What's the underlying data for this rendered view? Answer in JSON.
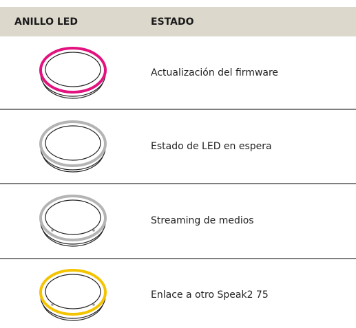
{
  "table": {
    "header": [
      "ANILLO LED",
      "ESTADO"
    ],
    "rows": [
      [
        "Actualización del firmware"
      ],
      [
        "Estado de LED en espera"
      ],
      [
        "Streaming de medios"
      ],
      [
        "Enlace a otro Speak2 75"
      ]
    ]
  }
}
